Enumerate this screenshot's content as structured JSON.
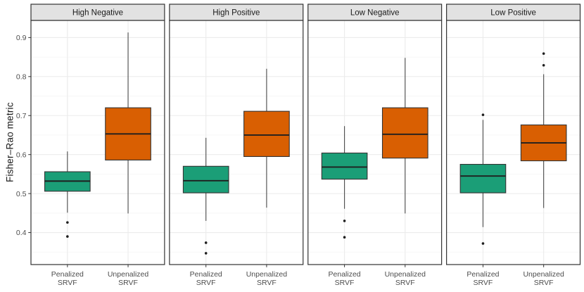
{
  "chart_data": {
    "type": "boxplot",
    "title": "",
    "ylabel": "Fisher–Rao metric",
    "ylim": [
      0.318,
      0.944
    ],
    "yticks": [
      0.9,
      0.8,
      0.7,
      0.6,
      0.5,
      0.4
    ],
    "ytick_labels": [
      "0.9",
      "0.8",
      "0.7",
      "0.6",
      "0.5",
      "0.4"
    ],
    "yminor": [
      0.85,
      0.75,
      0.65,
      0.55,
      0.45,
      0.35
    ],
    "grid": "major+minor",
    "legend_position": "none",
    "categories": [
      {
        "label": "Penalized SRVF",
        "lines": [
          "Penalized",
          "SRVF"
        ],
        "position": 0.273,
        "color": "#1B9E77"
      },
      {
        "label": "Unpenalized SRVF",
        "lines": [
          "Unpenalized",
          "SRVF"
        ],
        "position": 0.727,
        "color": "#D95F02"
      }
    ],
    "facets": [
      {
        "label": "High Negative",
        "boxes": [
          {
            "group": "Penalized SRVF",
            "whisker_low": 0.451,
            "q1": 0.506,
            "median": 0.532,
            "q3": 0.556,
            "whisker_high": 0.608,
            "outliers": [
              0.426,
              0.39
            ]
          },
          {
            "group": "Unpenalized SRVF",
            "whisker_low": 0.449,
            "q1": 0.586,
            "median": 0.653,
            "q3": 0.72,
            "whisker_high": 0.913,
            "outliers": []
          }
        ]
      },
      {
        "label": "High Positive",
        "boxes": [
          {
            "group": "Penalized SRVF",
            "whisker_low": 0.43,
            "q1": 0.502,
            "median": 0.533,
            "q3": 0.57,
            "whisker_high": 0.643,
            "outliers": [
              0.374,
              0.347
            ]
          },
          {
            "group": "Unpenalized SRVF",
            "whisker_low": 0.464,
            "q1": 0.595,
            "median": 0.65,
            "q3": 0.711,
            "whisker_high": 0.82,
            "outliers": []
          }
        ]
      },
      {
        "label": "Low Negative",
        "boxes": [
          {
            "group": "Penalized SRVF",
            "whisker_low": 0.461,
            "q1": 0.537,
            "median": 0.568,
            "q3": 0.604,
            "whisker_high": 0.673,
            "outliers": [
              0.43,
              0.388
            ]
          },
          {
            "group": "Unpenalized SRVF",
            "whisker_low": 0.449,
            "q1": 0.591,
            "median": 0.652,
            "q3": 0.72,
            "whisker_high": 0.848,
            "outliers": []
          }
        ]
      },
      {
        "label": "Low Positive",
        "boxes": [
          {
            "group": "Penalized SRVF",
            "whisker_low": 0.414,
            "q1": 0.502,
            "median": 0.545,
            "q3": 0.575,
            "whisker_high": 0.689,
            "outliers": [
              0.702,
              0.372
            ]
          },
          {
            "group": "Unpenalized SRVF",
            "whisker_low": 0.463,
            "q1": 0.584,
            "median": 0.63,
            "q3": 0.676,
            "whisker_high": 0.806,
            "outliers": [
              0.859,
              0.829
            ]
          }
        ]
      }
    ],
    "colors": {
      "penalized_fill": "#1B9E77",
      "unpenalized_fill": "#D95F02",
      "box_stroke": "#333333",
      "median_line": "#1f1f1f",
      "whisker": "#4a4a4a",
      "outlier": "#1f1f1f",
      "strip_bg": "#E2E2E2",
      "strip_border": "#333333",
      "strip_text": "#1a1a1a",
      "panel_bg": "#FFFFFF",
      "panel_border": "#333333",
      "grid_major": "#EBEBEB",
      "grid_minor": "#F5F5F5",
      "axis_text": "#4D4D4D",
      "axis_title": "#1a1a1a",
      "tick_mark": "#333333"
    }
  }
}
